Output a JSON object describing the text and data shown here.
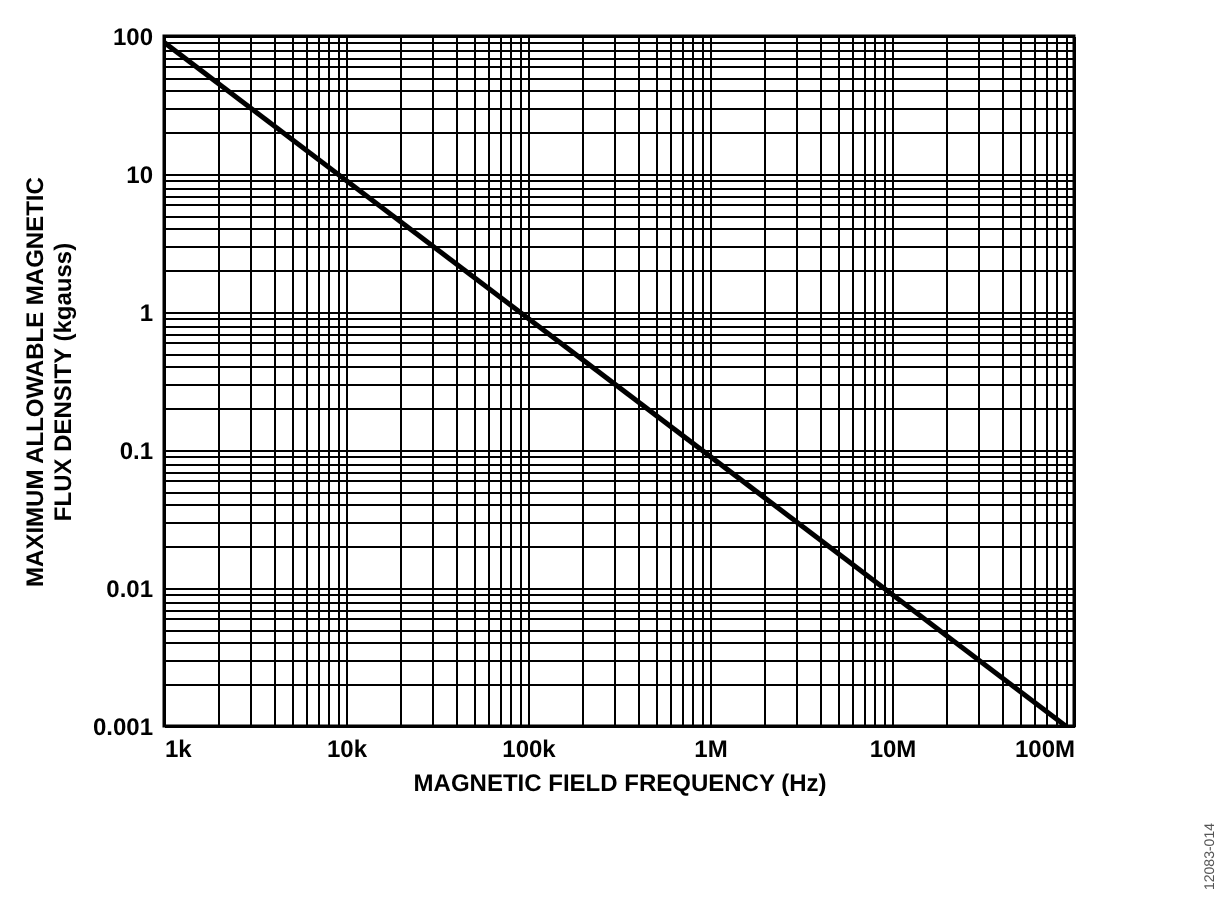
{
  "chart_data": {
    "type": "line",
    "xlabel": "MAGNETIC FIELD FREQUENCY (Hz)",
    "ylabel": "MAXIMUM ALLOWABLE MAGNETIC FLUX DENSITY (kgauss)",
    "annotations": [
      "12083-014"
    ],
    "log": "xy",
    "grid": true,
    "marker": "none",
    "line_style": "solid",
    "x": [
      1000,
      90000000
    ],
    "series": [
      {
        "color": "#000000",
        "values": [
          90,
          0.001
        ]
      }
    ],
    "xlim": [
      1000,
      100000000
    ],
    "xticks": [
      {
        "value": 1000,
        "label": "1k"
      },
      {
        "value": 2000,
        "label": null
      },
      {
        "value": 3000,
        "label": null
      },
      {
        "value": 4000,
        "label": null
      },
      {
        "value": 5000,
        "label": null
      },
      {
        "value": 6000,
        "label": null
      },
      {
        "value": 7000,
        "label": null
      },
      {
        "value": 8000,
        "label": null
      },
      {
        "value": 9000,
        "label": null
      },
      {
        "value": 10000,
        "label": "10k"
      },
      {
        "value": 20000,
        "label": null
      },
      {
        "value": 30000,
        "label": null
      },
      {
        "value": 40000,
        "label": null
      },
      {
        "value": 50000,
        "label": null
      },
      {
        "value": 60000,
        "label": null
      },
      {
        "value": 70000,
        "label": null
      },
      {
        "value": 80000,
        "label": null
      },
      {
        "value": 90000,
        "label": null
      },
      {
        "value": 100000,
        "label": "100k"
      },
      {
        "value": 200000,
        "label": null
      },
      {
        "value": 300000,
        "label": null
      },
      {
        "value": 400000,
        "label": null
      },
      {
        "value": 500000,
        "label": null
      },
      {
        "value": 600000,
        "label": null
      },
      {
        "value": 700000,
        "label": null
      },
      {
        "value": 800000,
        "label": null
      },
      {
        "value": 900000,
        "label": null
      },
      {
        "value": 1000000,
        "label": "1M"
      },
      {
        "value": 2000000,
        "label": null
      },
      {
        "value": 3000000,
        "label": null
      },
      {
        "value": 4000000,
        "label": null
      },
      {
        "value": 5000000,
        "label": null
      },
      {
        "value": 6000000,
        "label": null
      },
      {
        "value": 7000000,
        "label": null
      },
      {
        "value": 8000000,
        "label": null
      },
      {
        "value": 9000000,
        "label": null
      },
      {
        "value": 10000000,
        "label": "10M"
      },
      {
        "value": 20000000,
        "label": null
      },
      {
        "value": 30000000,
        "label": null
      },
      {
        "value": 40000000,
        "label": null
      },
      {
        "value": 50000000,
        "label": null
      },
      {
        "value": 60000000,
        "label": null
      },
      {
        "value": 70000000,
        "label": null
      },
      {
        "value": 80000000,
        "label": null
      },
      {
        "value": 90000000,
        "label": null
      },
      {
        "value": 100000000,
        "label": "100M"
      }
    ],
    "ylim": [
      0.001,
      100
    ],
    "yticks": [
      0.001,
      {
        "value": 0.002,
        "label": null
      },
      {
        "value": 0.003,
        "label": null
      },
      {
        "value": 0.004,
        "label": null
      },
      {
        "value": 0.005,
        "label": null
      },
      {
        "value": 0.006,
        "label": null
      },
      {
        "value": 0.007,
        "label": null
      },
      {
        "value": 0.008,
        "label": null
      },
      {
        "value": 0.009,
        "label": null
      },
      0.01,
      {
        "value": 0.02,
        "label": null
      },
      {
        "value": 0.03,
        "label": null
      },
      {
        "value": 0.04,
        "label": null
      },
      {
        "value": 0.05,
        "label": null
      },
      {
        "value": 0.06,
        "label": null
      },
      {
        "value": 0.07,
        "label": null
      },
      {
        "value": 0.08,
        "label": null
      },
      {
        "value": 0.09,
        "label": null
      },
      0.1,
      {
        "value": 0.2,
        "label": null
      },
      {
        "value": 0.3,
        "label": null
      },
      {
        "value": 0.4,
        "label": null
      },
      {
        "value": 0.5,
        "label": null
      },
      {
        "value": 0.6,
        "label": null
      },
      {
        "value": 0.7,
        "label": null
      },
      {
        "value": 0.8,
        "label": null
      },
      {
        "value": 0.9,
        "label": null
      },
      1,
      {
        "value": 2,
        "label": null
      },
      {
        "value": 3,
        "label": null
      },
      {
        "value": 4,
        "label": null
      },
      {
        "value": 5,
        "label": null
      },
      {
        "value": 6,
        "label": null
      },
      {
        "value": 7,
        "label": null
      },
      {
        "value": 8,
        "label": null
      },
      {
        "value": 9,
        "label": null
      },
      10,
      {
        "value": 20,
        "label": null
      },
      {
        "value": 30,
        "label": null
      },
      {
        "value": 40,
        "label": null
      },
      {
        "value": 50,
        "label": null
      },
      {
        "value": 60,
        "label": null
      },
      {
        "value": 70,
        "label": null
      },
      {
        "value": 80,
        "label": null
      },
      {
        "value": 90,
        "label": null
      },
      100
    ]
  }
}
